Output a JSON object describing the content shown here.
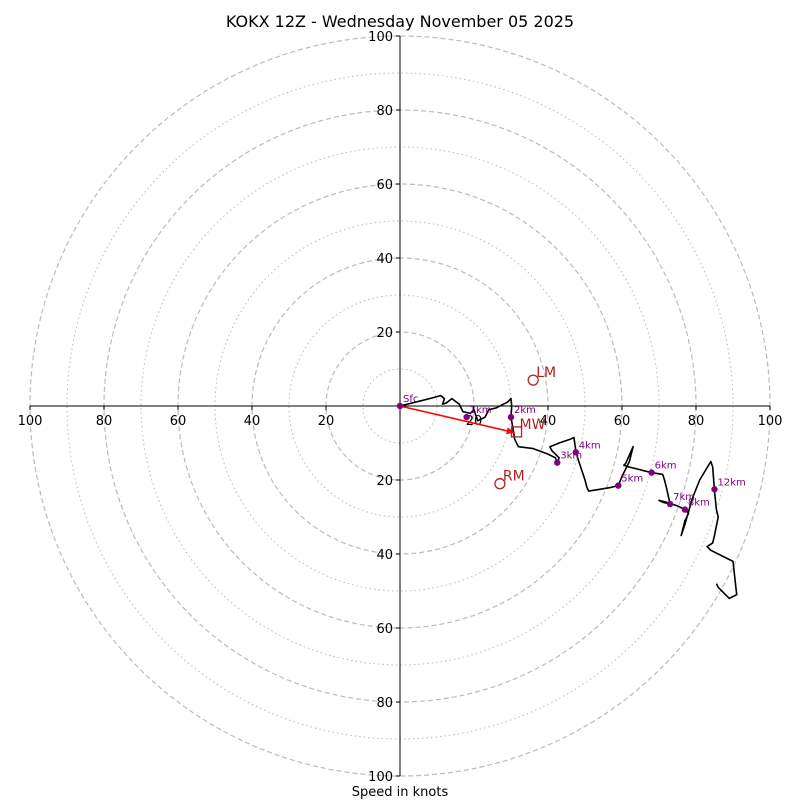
{
  "chart_data": {
    "type": "hodograph",
    "title": "KOKX 12Z - Wednesday November 05 2025",
    "xlabel": "Speed in knots",
    "speed_max": 100,
    "ring_interval_major": 20,
    "ring_interval_minor": 10,
    "tick_labels": {
      "x": [
        "100",
        "80",
        "60",
        "40",
        "20",
        "20",
        "40",
        "60",
        "80",
        "100"
      ],
      "y": [
        "100",
        "80",
        "60",
        "40",
        "20",
        "20",
        "40",
        "60",
        "80",
        "100"
      ]
    },
    "x_tick_values": [
      -100,
      -80,
      -60,
      -40,
      -20,
      20,
      40,
      60,
      80,
      100
    ],
    "y_tick_values": [
      100,
      80,
      60,
      40,
      20,
      -20,
      -40,
      -60,
      -80,
      -100
    ],
    "hodograph": [
      [
        0,
        0
      ],
      [
        4,
        1
      ],
      [
        8,
        2
      ],
      [
        11,
        2.8
      ],
      [
        12,
        2
      ],
      [
        11.5,
        0.5
      ],
      [
        12.5,
        0.8
      ],
      [
        14,
        2
      ],
      [
        16,
        0.5
      ],
      [
        17,
        -1.5
      ],
      [
        19,
        -2
      ],
      [
        20,
        -1
      ],
      [
        21,
        -4
      ],
      [
        23,
        -3
      ],
      [
        24,
        -1
      ],
      [
        26,
        -0.5
      ],
      [
        28,
        0.5
      ],
      [
        29,
        1
      ],
      [
        30,
        2
      ],
      [
        30.2,
        0
      ],
      [
        30,
        -3
      ],
      [
        30.5,
        -6
      ],
      [
        31,
        -9
      ],
      [
        32,
        -11
      ],
      [
        36,
        -11.5
      ],
      [
        40,
        -13
      ],
      [
        42,
        -14
      ],
      [
        42.5,
        -15.3
      ],
      [
        43,
        -14
      ],
      [
        41,
        -12
      ],
      [
        40.5,
        -11
      ],
      [
        43,
        -10
      ],
      [
        46,
        -9
      ],
      [
        47,
        -8.5
      ],
      [
        47.5,
        -12
      ],
      [
        48,
        -14
      ],
      [
        49,
        -17
      ],
      [
        50,
        -20
      ],
      [
        50.5,
        -22
      ],
      [
        51,
        -23
      ],
      [
        54,
        -22.5
      ],
      [
        57,
        -22
      ],
      [
        59,
        -21.5
      ],
      [
        60,
        -19
      ],
      [
        62,
        -15
      ],
      [
        63,
        -11
      ],
      [
        61,
        -15.5
      ],
      [
        60.5,
        -16
      ],
      [
        62,
        -16.5
      ],
      [
        64,
        -17
      ],
      [
        66,
        -17.5
      ],
      [
        68,
        -18
      ],
      [
        71,
        -18.5
      ],
      [
        71.5,
        -20
      ],
      [
        72,
        -22
      ],
      [
        73,
        -26.5
      ],
      [
        71,
        -26
      ],
      [
        70,
        -25.5
      ],
      [
        72,
        -26
      ],
      [
        73.5,
        -26.5
      ],
      [
        75,
        -27
      ],
      [
        77,
        -28
      ],
      [
        78,
        -29
      ],
      [
        77,
        -31
      ],
      [
        76,
        -35
      ],
      [
        77,
        -32
      ],
      [
        79,
        -25
      ],
      [
        81,
        -20
      ],
      [
        84,
        -15
      ],
      [
        84.5,
        -16.5
      ],
      [
        85,
        -23
      ],
      [
        85.5,
        -28
      ],
      [
        86,
        -30
      ],
      [
        85,
        -35
      ],
      [
        84.5,
        -37
      ],
      [
        83,
        -38
      ],
      [
        84,
        -39
      ],
      [
        90,
        -42
      ],
      [
        91,
        -51
      ],
      [
        89,
        -52
      ],
      [
        86,
        -49
      ],
      [
        85.5,
        -48
      ]
    ],
    "height_markers": [
      {
        "label": "Sfc",
        "u": 0,
        "v": 0
      },
      {
        "label": "1km",
        "u": 18,
        "v": -3
      },
      {
        "label": "2km",
        "u": 30,
        "v": -3
      },
      {
        "label": "3km",
        "u": 42.5,
        "v": -15.3
      },
      {
        "label": "4km",
        "u": 47.5,
        "v": -12.5
      },
      {
        "label": "5km",
        "u": 59,
        "v": -21.5
      },
      {
        "label": "6km",
        "u": 68,
        "v": -18
      },
      {
        "label": "7km",
        "u": 73,
        "v": -26.5
      },
      {
        "label": "8km",
        "u": 77,
        "v": -28
      },
      {
        "label": "12km",
        "u": 85,
        "v": -22.5
      }
    ],
    "storm_motion": {
      "LM": {
        "label": "LM",
        "u": 36,
        "v": 7
      },
      "RM": {
        "label": "RM",
        "u": 27,
        "v": -21
      },
      "MW": {
        "label": "MW",
        "u": 31.5,
        "v": -7
      }
    },
    "mean_wind_vector": {
      "from": [
        0,
        0
      ],
      "to": [
        31,
        -7.2
      ]
    }
  },
  "colors": {
    "trace": "#000000",
    "height_marker": "#800080",
    "storm_motion": "#b22222",
    "mean_wind_arrow": "#ff0000",
    "ring": "#bbbbbb"
  }
}
